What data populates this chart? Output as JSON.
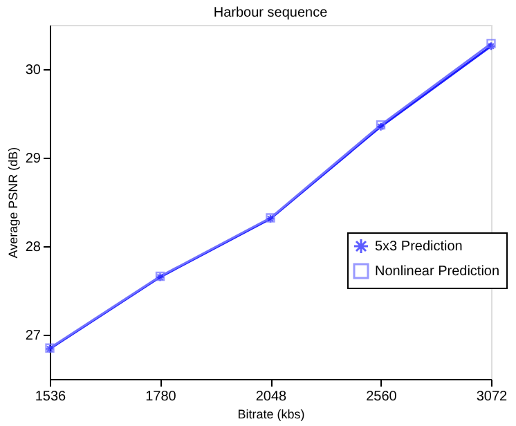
{
  "chart_data": {
    "type": "line",
    "title": "Harbour sequence",
    "xlabel": "Bitrate (kbs)",
    "ylabel": "Average PSNR (dB)",
    "categories": [
      "1536",
      "1780",
      "2048",
      "2560",
      "3072"
    ],
    "series": [
      {
        "name": "5x3 Prediction",
        "color": "#1a1aff",
        "marker": "cross",
        "values": [
          26.84,
          27.65,
          28.31,
          29.35,
          30.26
        ]
      },
      {
        "name": "Nonlinear Prediction",
        "color": "#6f6fff",
        "marker": "square",
        "values": [
          26.85,
          27.66,
          28.32,
          29.37,
          30.29
        ]
      }
    ],
    "ylim": [
      26.5,
      30.5
    ],
    "yticks": [
      27,
      28,
      29,
      30
    ],
    "grid": false,
    "legend": "right"
  }
}
